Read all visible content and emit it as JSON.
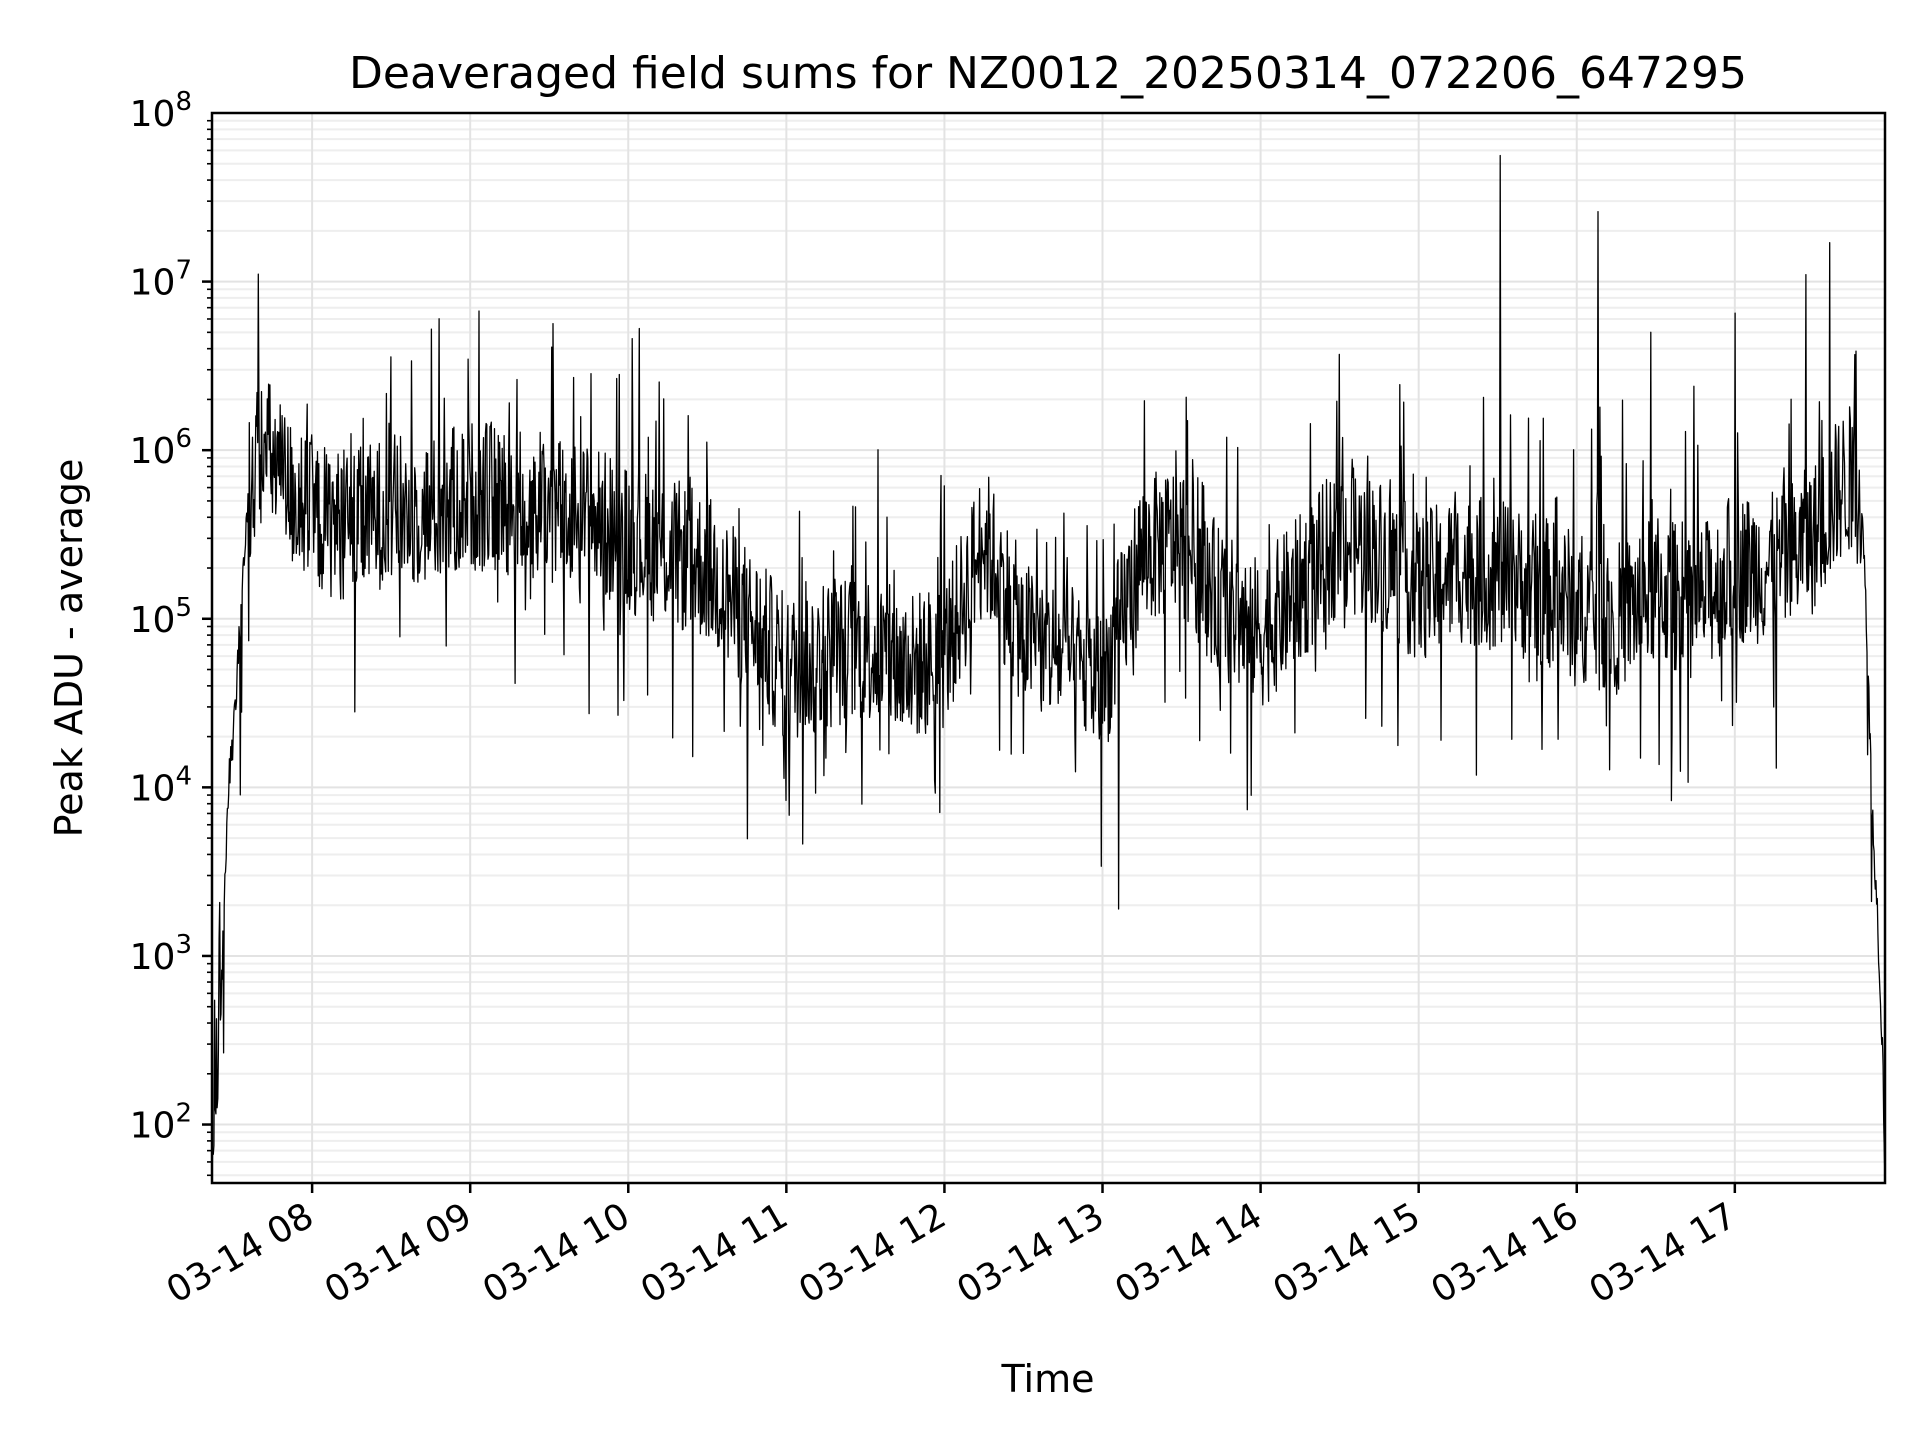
{
  "chart_data": {
    "type": "line",
    "title": "Deaveraged field sums for NZ0012_20250314_072206_647295",
    "xlabel": "Time",
    "ylabel": "Peak ADU - average",
    "yscale": "log",
    "ylim": [
      45,
      100000000
    ],
    "xlim": [
      "03-14 07:22",
      "03-14 17:57"
    ],
    "grid": true,
    "x_ticks": [
      "03-14 08",
      "03-14 09",
      "03-14 10",
      "03-14 11",
      "03-14 12",
      "03-14 13",
      "03-14 14",
      "03-14 15",
      "03-14 16",
      "03-14 17"
    ],
    "y_ticks": [
      {
        "base": "10",
        "exp": "2",
        "value": 100
      },
      {
        "base": "10",
        "exp": "3",
        "value": 1000
      },
      {
        "base": "10",
        "exp": "4",
        "value": 10000
      },
      {
        "base": "10",
        "exp": "5",
        "value": 100000
      },
      {
        "base": "10",
        "exp": "6",
        "value": 1000000
      },
      {
        "base": "10",
        "exp": "7",
        "value": 10000000
      },
      {
        "base": "10",
        "exp": "8",
        "value": 100000000
      }
    ],
    "series": [
      {
        "color": "#000000",
        "x": [
          "03-14 07:22",
          "03-14 07:24",
          "03-14 07:26",
          "03-14 07:28",
          "03-14 07:30",
          "03-14 07:32",
          "03-14 07:34",
          "03-14 07:36",
          "03-14 07:40",
          "03-14 07:45",
          "03-14 07:50",
          "03-14 08:00",
          "03-14 08:15",
          "03-14 08:30",
          "03-14 08:45",
          "03-14 09:00",
          "03-14 09:15",
          "03-14 09:30",
          "03-14 09:45",
          "03-14 10:00",
          "03-14 10:15",
          "03-14 10:30",
          "03-14 10:45",
          "03-14 11:00",
          "03-14 11:15",
          "03-14 11:30",
          "03-14 11:45",
          "03-14 12:00",
          "03-14 12:15",
          "03-14 12:30",
          "03-14 12:45",
          "03-14 13:00",
          "03-14 13:15",
          "03-14 13:30",
          "03-14 13:45",
          "03-14 14:00",
          "03-14 14:15",
          "03-14 14:30",
          "03-14 14:45",
          "03-14 15:00",
          "03-14 15:15",
          "03-14 15:30",
          "03-14 15:45",
          "03-14 16:00",
          "03-14 16:15",
          "03-14 16:30",
          "03-14 16:45",
          "03-14 17:00",
          "03-14 17:15",
          "03-14 17:30",
          "03-14 17:40",
          "03-14 17:45",
          "03-14 17:48",
          "03-14 17:50",
          "03-14 17:52",
          "03-14 17:54",
          "03-14 17:56",
          "03-14 17:57"
        ],
        "values": [
          60,
          150,
          1000,
          9000,
          20000,
          60000,
          200000,
          600000,
          1000000,
          900000,
          600000,
          400000,
          350000,
          450000,
          420000,
          550000,
          500000,
          450000,
          400000,
          300000,
          250000,
          200000,
          100000,
          50000,
          60000,
          70000,
          50000,
          60000,
          300000,
          80000,
          60000,
          40000,
          250000,
          300000,
          120000,
          80000,
          150000,
          300000,
          250000,
          150000,
          200000,
          180000,
          150000,
          120000,
          100000,
          150000,
          120000,
          200000,
          200000,
          300000,
          600000,
          700000,
          500000,
          100000,
          8000,
          2000,
          300,
          50
        ],
        "spikes": [
          {
            "x": "03-14 15:31",
            "value": 56000000
          },
          {
            "x": "03-14 16:08",
            "value": 26000000
          },
          {
            "x": "03-14 17:36",
            "value": 17000000
          },
          {
            "x": "03-14 17:27",
            "value": 11000000
          },
          {
            "x": "03-14 17:00",
            "value": 6500000
          },
          {
            "x": "03-14 16:28",
            "value": 5000000
          },
          {
            "x": "03-14 13:06",
            "value": 1900
          }
        ]
      }
    ]
  }
}
